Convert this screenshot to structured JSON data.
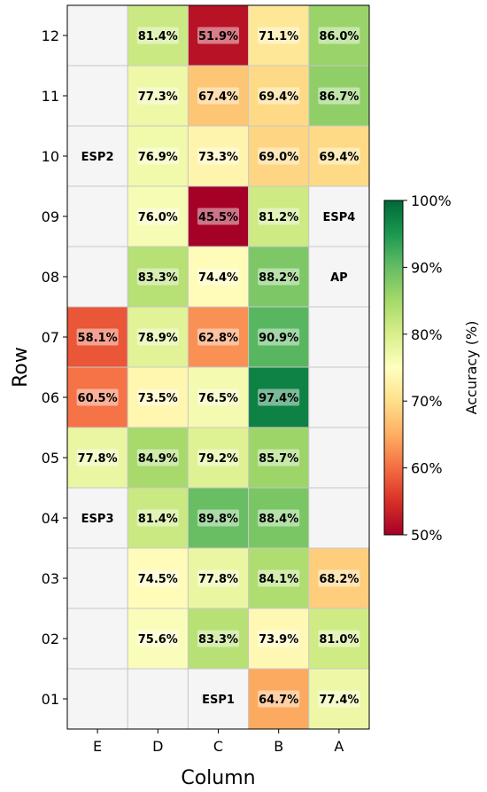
{
  "chart_data": {
    "type": "heatmap",
    "title": "",
    "xlabel": "Column",
    "ylabel": "Row",
    "columns": [
      "E",
      "D",
      "C",
      "B",
      "A"
    ],
    "rows": [
      "12",
      "11",
      "10",
      "09",
      "08",
      "07",
      "06",
      "05",
      "04",
      "03",
      "02",
      "01"
    ],
    "values": [
      [
        null,
        81.4,
        51.9,
        71.1,
        86.0
      ],
      [
        null,
        77.3,
        67.4,
        69.4,
        86.7
      ],
      [
        null,
        76.9,
        73.3,
        69.0,
        69.4
      ],
      [
        null,
        76.0,
        45.5,
        81.2,
        null
      ],
      [
        null,
        83.3,
        74.4,
        88.2,
        null
      ],
      [
        58.1,
        78.9,
        62.8,
        90.9,
        null
      ],
      [
        60.5,
        73.5,
        76.5,
        97.4,
        null
      ],
      [
        77.8,
        84.9,
        79.2,
        85.7,
        null
      ],
      [
        null,
        81.4,
        89.8,
        88.4,
        null
      ],
      [
        null,
        74.5,
        77.8,
        84.1,
        68.2
      ],
      [
        null,
        75.6,
        83.3,
        73.9,
        81.0
      ],
      [
        null,
        null,
        null,
        64.7,
        77.4
      ]
    ],
    "cell_labels": [
      [
        "",
        "81.4%",
        "51.9%",
        "71.1%",
        "86.0%"
      ],
      [
        "",
        "77.3%",
        "67.4%",
        "69.4%",
        "86.7%"
      ],
      [
        "ESP2",
        "76.9%",
        "73.3%",
        "69.0%",
        "69.4%"
      ],
      [
        "",
        "76.0%",
        "45.5%",
        "81.2%",
        "ESP4"
      ],
      [
        "",
        "83.3%",
        "74.4%",
        "88.2%",
        "AP"
      ],
      [
        "58.1%",
        "78.9%",
        "62.8%",
        "90.9%",
        ""
      ],
      [
        "60.5%",
        "73.5%",
        "76.5%",
        "97.4%",
        ""
      ],
      [
        "77.8%",
        "84.9%",
        "79.2%",
        "85.7%",
        ""
      ],
      [
        "ESP3",
        "81.4%",
        "89.8%",
        "88.4%",
        ""
      ],
      [
        "",
        "74.5%",
        "77.8%",
        "84.1%",
        "68.2%"
      ],
      [
        "",
        "75.6%",
        "83.3%",
        "73.9%",
        "81.0%"
      ],
      [
        "",
        "",
        "ESP1",
        "64.7%",
        "77.4%"
      ]
    ],
    "colorbar": {
      "label": "Accuracy (%)",
      "range": [
        50,
        100
      ],
      "ticks": [
        "50%",
        "60%",
        "70%",
        "80%",
        "90%",
        "100%"
      ],
      "colormap": "RdYlGn"
    },
    "empty_cell_color": "#f5f5f5",
    "grid": true
  }
}
